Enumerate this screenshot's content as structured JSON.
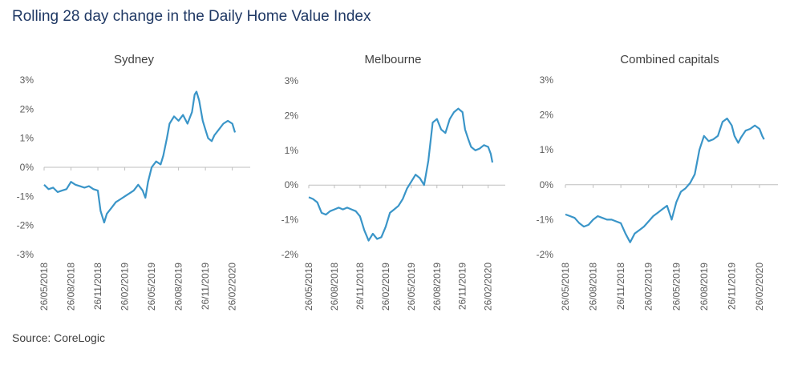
{
  "title": "Rolling 28 day change in the Daily Home Value Index",
  "source": "Source: CoreLogic",
  "chart_data": [
    {
      "type": "line",
      "title": "Sydney",
      "ylim": [
        -3,
        3
      ],
      "yticks": [
        "3%",
        "2%",
        "1%",
        "0%",
        "-1%",
        "-2%",
        "-3%"
      ],
      "xticks": [
        "26/05/2018",
        "26/08/2018",
        "26/11/2018",
        "26/02/2019",
        "26/05/2019",
        "26/08/2019",
        "26/11/2019",
        "26/02/2020"
      ],
      "x_range_months": [
        0,
        23
      ],
      "series": [
        {
          "name": "Sydney",
          "points": [
            [
              0,
              -0.6
            ],
            [
              0.5,
              -0.75
            ],
            [
              1,
              -0.7
            ],
            [
              1.5,
              -0.85
            ],
            [
              2,
              -0.8
            ],
            [
              2.5,
              -0.75
            ],
            [
              3,
              -0.5
            ],
            [
              3.5,
              -0.6
            ],
            [
              4,
              -0.65
            ],
            [
              4.5,
              -0.7
            ],
            [
              5,
              -0.65
            ],
            [
              5.5,
              -0.75
            ],
            [
              6,
              -0.8
            ],
            [
              6.3,
              -1.5
            ],
            [
              6.7,
              -1.9
            ],
            [
              7,
              -1.6
            ],
            [
              7.5,
              -1.4
            ],
            [
              8,
              -1.2
            ],
            [
              8.5,
              -1.1
            ],
            [
              9,
              -1.0
            ],
            [
              9.5,
              -0.9
            ],
            [
              10,
              -0.8
            ],
            [
              10.5,
              -0.6
            ],
            [
              11,
              -0.8
            ],
            [
              11.3,
              -1.05
            ],
            [
              11.6,
              -0.5
            ],
            [
              12,
              0.0
            ],
            [
              12.5,
              0.2
            ],
            [
              13,
              0.1
            ],
            [
              13.3,
              0.4
            ],
            [
              13.7,
              1.0
            ],
            [
              14,
              1.5
            ],
            [
              14.5,
              1.75
            ],
            [
              15,
              1.6
            ],
            [
              15.5,
              1.8
            ],
            [
              16,
              1.5
            ],
            [
              16.5,
              1.9
            ],
            [
              16.8,
              2.5
            ],
            [
              17,
              2.6
            ],
            [
              17.3,
              2.3
            ],
            [
              17.7,
              1.6
            ],
            [
              18,
              1.3
            ],
            [
              18.3,
              1.0
            ],
            [
              18.7,
              0.9
            ],
            [
              19,
              1.1
            ],
            [
              19.5,
              1.3
            ],
            [
              20,
              1.5
            ],
            [
              20.5,
              1.6
            ],
            [
              21,
              1.5
            ],
            [
              21.3,
              1.2
            ]
          ]
        }
      ]
    },
    {
      "type": "line",
      "title": "Melbourne",
      "ylim": [
        -2,
        3
      ],
      "yticks": [
        "3%",
        "2%",
        "1%",
        "0%",
        "-1%",
        "-2%"
      ],
      "xticks": [
        "26/05/2018",
        "26/08/2018",
        "26/11/2018",
        "26/02/2019",
        "26/05/2019",
        "26/08/2019",
        "26/11/2019",
        "26/02/2020"
      ],
      "x_range_months": [
        0,
        23
      ],
      "series": [
        {
          "name": "Melbourne",
          "points": [
            [
              0,
              -0.35
            ],
            [
              0.5,
              -0.4
            ],
            [
              1,
              -0.5
            ],
            [
              1.5,
              -0.8
            ],
            [
              2,
              -0.85
            ],
            [
              2.5,
              -0.75
            ],
            [
              3,
              -0.7
            ],
            [
              3.5,
              -0.65
            ],
            [
              4,
              -0.7
            ],
            [
              4.5,
              -0.65
            ],
            [
              5,
              -0.7
            ],
            [
              5.5,
              -0.75
            ],
            [
              6,
              -0.9
            ],
            [
              6.5,
              -1.3
            ],
            [
              7,
              -1.6
            ],
            [
              7.5,
              -1.4
            ],
            [
              8,
              -1.55
            ],
            [
              8.5,
              -1.5
            ],
            [
              9,
              -1.2
            ],
            [
              9.5,
              -0.8
            ],
            [
              10,
              -0.7
            ],
            [
              10.5,
              -0.6
            ],
            [
              11,
              -0.4
            ],
            [
              11.5,
              -0.1
            ],
            [
              12,
              0.1
            ],
            [
              12.5,
              0.3
            ],
            [
              13,
              0.2
            ],
            [
              13.5,
              0.0
            ],
            [
              14,
              0.7
            ],
            [
              14.5,
              1.8
            ],
            [
              15,
              1.9
            ],
            [
              15.5,
              1.6
            ],
            [
              16,
              1.5
            ],
            [
              16.5,
              1.9
            ],
            [
              17,
              2.1
            ],
            [
              17.5,
              2.2
            ],
            [
              18,
              2.1
            ],
            [
              18.3,
              1.6
            ],
            [
              18.7,
              1.3
            ],
            [
              19,
              1.1
            ],
            [
              19.5,
              1.0
            ],
            [
              20,
              1.05
            ],
            [
              20.5,
              1.15
            ],
            [
              21,
              1.1
            ],
            [
              21.3,
              0.9
            ],
            [
              21.5,
              0.65
            ]
          ]
        }
      ]
    },
    {
      "type": "line",
      "title": "Combined capitals",
      "ylim": [
        -2,
        3
      ],
      "yticks": [
        "3%",
        "2%",
        "1%",
        "0%",
        "-1%",
        "-2%"
      ],
      "xticks": [
        "26/05/2018",
        "26/08/2018",
        "26/11/2018",
        "26/02/2019",
        "26/05/2019",
        "26/08/2019",
        "26/11/2019",
        "26/02/2020"
      ],
      "x_range_months": [
        0,
        23
      ],
      "series": [
        {
          "name": "Combined capitals",
          "points": [
            [
              0,
              -0.85
            ],
            [
              0.5,
              -0.9
            ],
            [
              1,
              -0.95
            ],
            [
              1.5,
              -1.1
            ],
            [
              2,
              -1.2
            ],
            [
              2.5,
              -1.15
            ],
            [
              3,
              -1.0
            ],
            [
              3.5,
              -0.9
            ],
            [
              4,
              -0.95
            ],
            [
              4.5,
              -1.0
            ],
            [
              5,
              -1.0
            ],
            [
              5.5,
              -1.05
            ],
            [
              6,
              -1.1
            ],
            [
              6.5,
              -1.4
            ],
            [
              7,
              -1.65
            ],
            [
              7.5,
              -1.4
            ],
            [
              8,
              -1.3
            ],
            [
              8.5,
              -1.2
            ],
            [
              9,
              -1.05
            ],
            [
              9.5,
              -0.9
            ],
            [
              10,
              -0.8
            ],
            [
              10.5,
              -0.7
            ],
            [
              11,
              -0.6
            ],
            [
              11.5,
              -1.0
            ],
            [
              12,
              -0.5
            ],
            [
              12.5,
              -0.2
            ],
            [
              13,
              -0.1
            ],
            [
              13.5,
              0.05
            ],
            [
              14,
              0.3
            ],
            [
              14.5,
              1.0
            ],
            [
              15,
              1.4
            ],
            [
              15.5,
              1.25
            ],
            [
              16,
              1.3
            ],
            [
              16.5,
              1.4
            ],
            [
              17,
              1.8
            ],
            [
              17.5,
              1.9
            ],
            [
              18,
              1.7
            ],
            [
              18.3,
              1.4
            ],
            [
              18.7,
              1.2
            ],
            [
              19,
              1.35
            ],
            [
              19.5,
              1.55
            ],
            [
              20,
              1.6
            ],
            [
              20.5,
              1.7
            ],
            [
              21,
              1.6
            ],
            [
              21.3,
              1.4
            ],
            [
              21.5,
              1.3
            ]
          ]
        }
      ]
    }
  ]
}
